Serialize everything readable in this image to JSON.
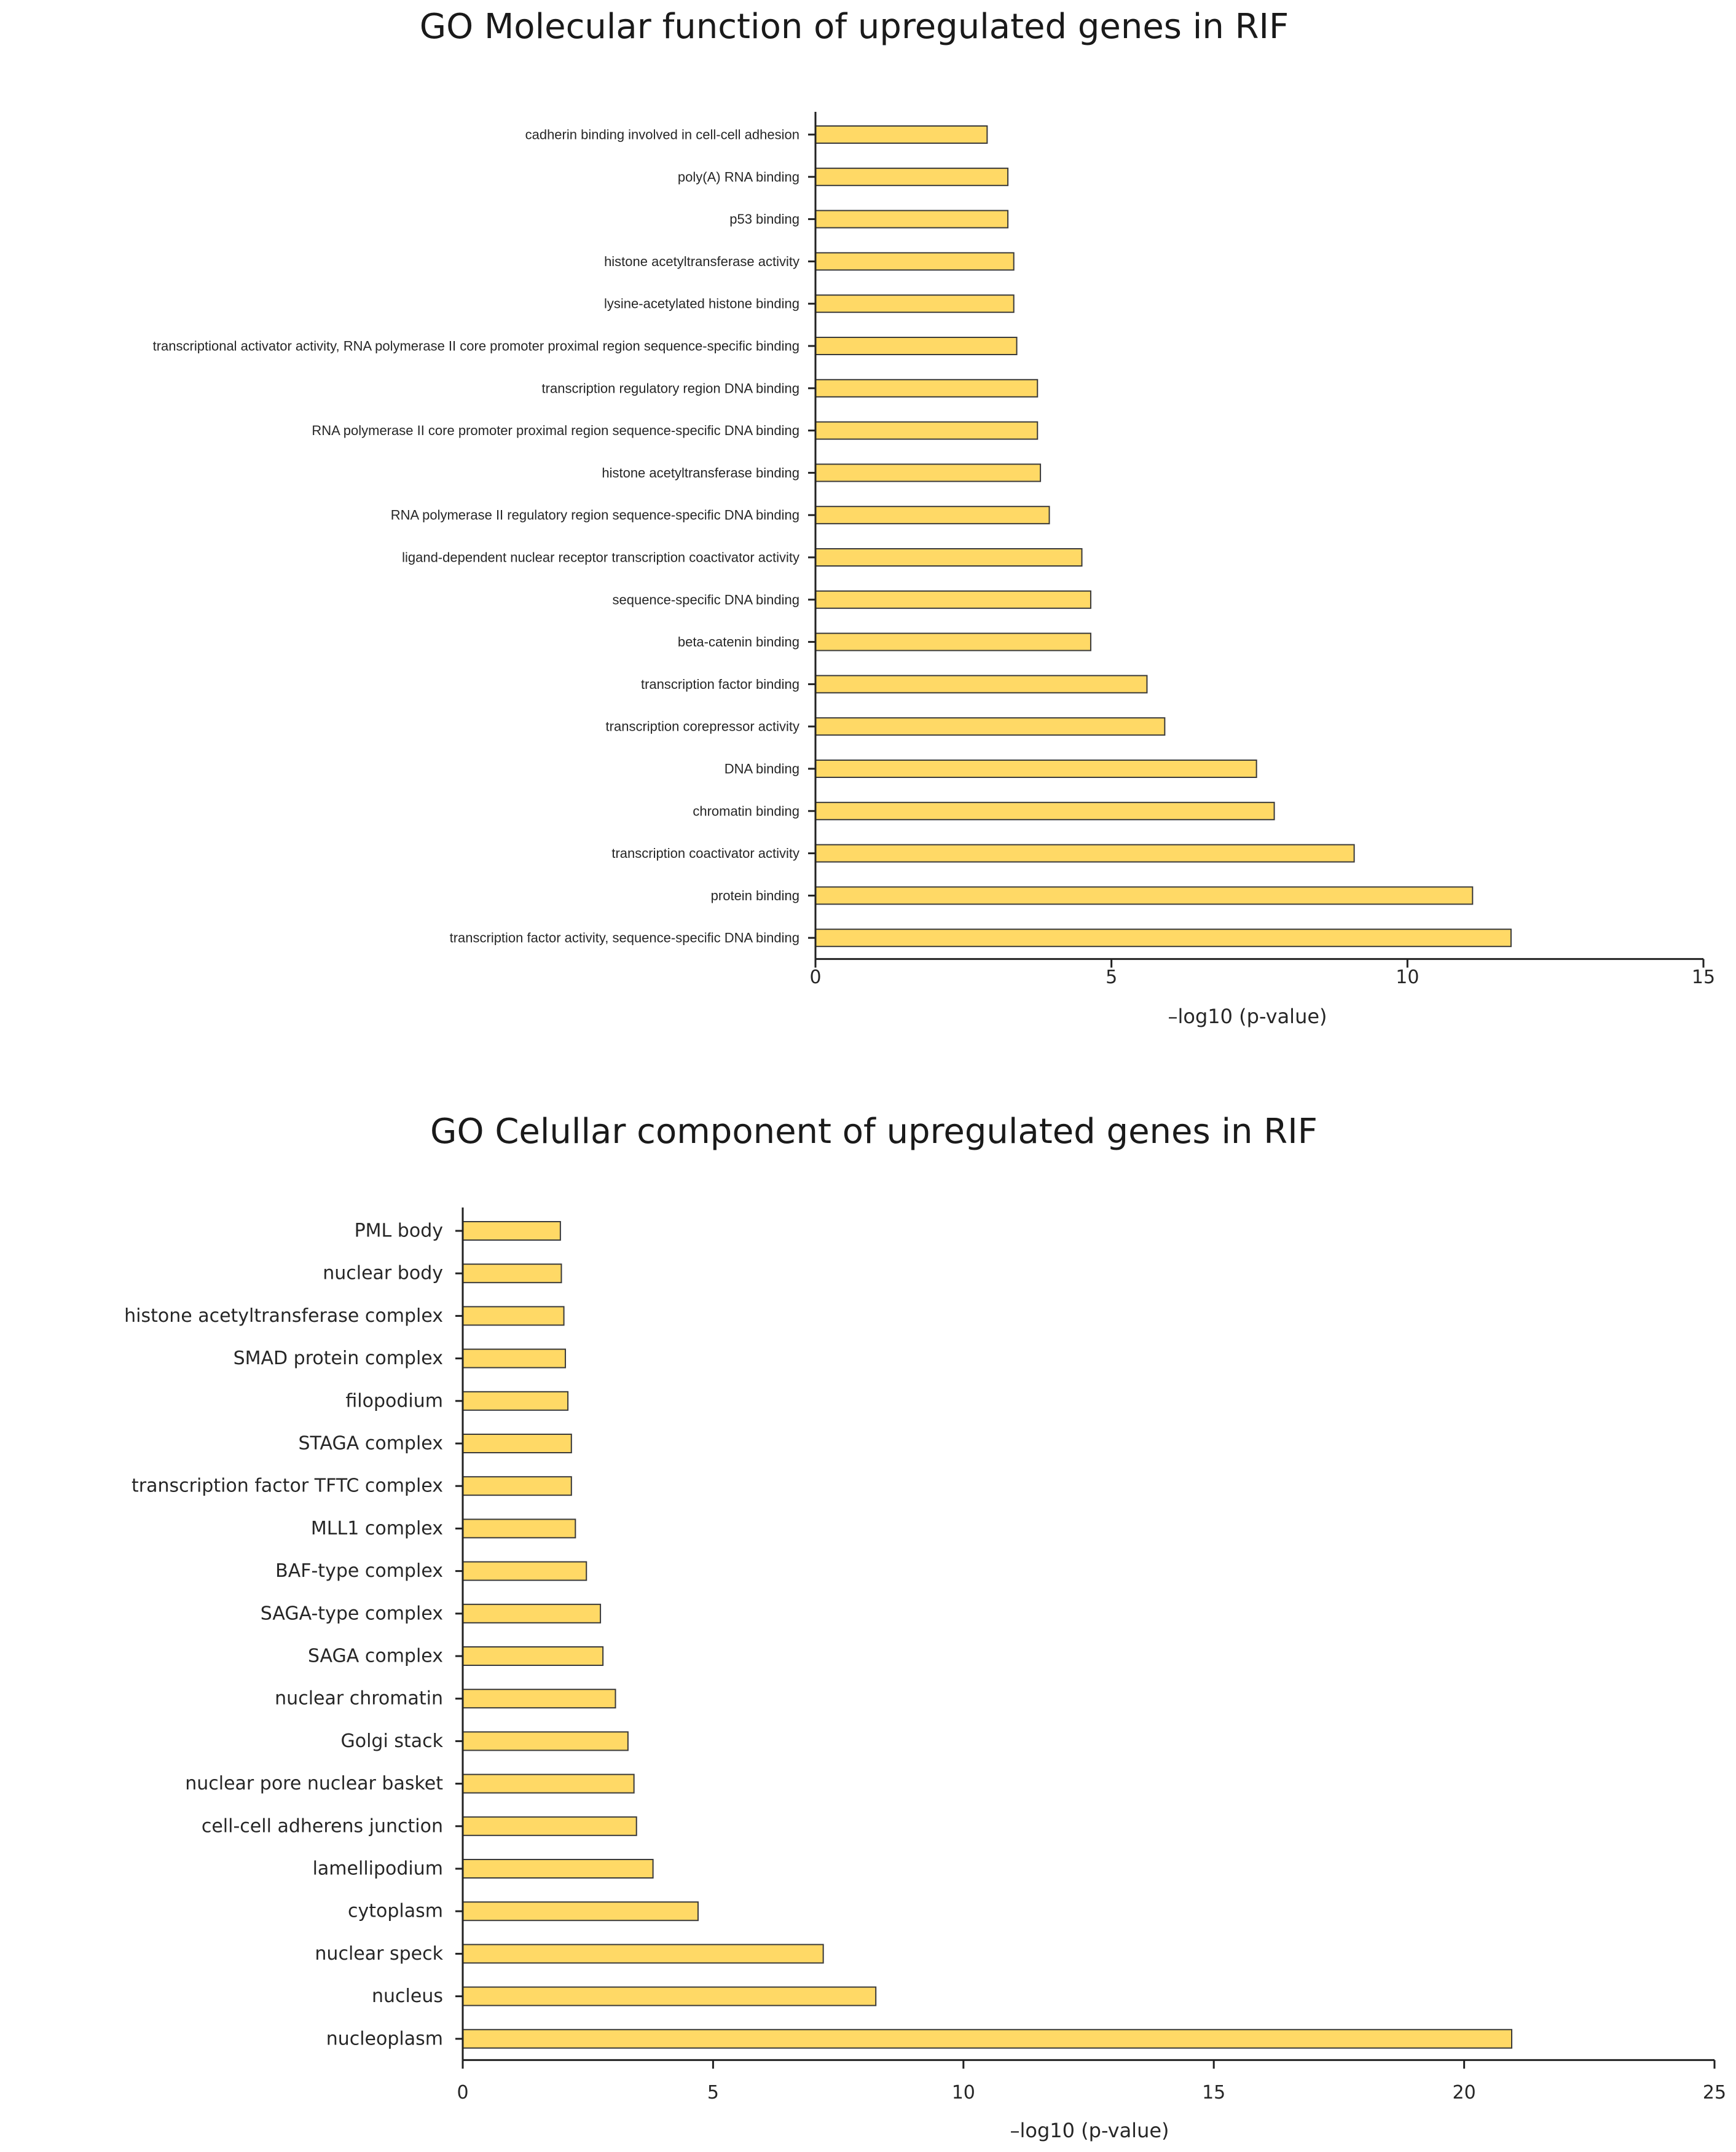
{
  "chart_data": [
    {
      "type": "bar",
      "orientation": "horizontal",
      "title": "GO Molecular function of upregulated genes in RIF",
      "xlabel": "–log10 (p-value)",
      "ylabel": "",
      "xlim": [
        0,
        15
      ],
      "xticks": [
        0,
        5,
        10,
        15
      ],
      "bar_color": "#FFD966",
      "categories": [
        "cadherin binding involved in cell-cell adhesion",
        "poly(A) RNA binding",
        "p53 binding",
        "histone acetyltransferase activity",
        "lysine-acetylated histone binding",
        "transcriptional activator activity, RNA polymerase II core promoter proximal region sequence-specific binding",
        "transcription regulatory region DNA binding",
        "RNA polymerase II core promoter proximal region sequence-specific DNA binding",
        "histone acetyltransferase binding",
        "RNA polymerase II regulatory region sequence-specific DNA binding",
        "ligand-dependent nuclear receptor transcription coactivator activity",
        "sequence-specific DNA binding",
        "beta-catenin binding",
        "transcription factor binding",
        "transcription corepressor activity",
        "DNA binding",
        "chromatin binding",
        "transcription coactivator activity",
        "protein binding",
        "transcription factor activity, sequence-specific DNA binding"
      ],
      "values": [
        2.9,
        3.25,
        3.25,
        3.35,
        3.35,
        3.4,
        3.75,
        3.75,
        3.8,
        3.95,
        4.5,
        4.65,
        4.65,
        5.6,
        5.9,
        7.45,
        7.75,
        9.1,
        11.1,
        11.75
      ]
    },
    {
      "type": "bar",
      "orientation": "horizontal",
      "title": "GO Celullar component of upregulated genes in RIF",
      "xlabel": "–log10 (p-value)",
      "ylabel": "",
      "xlim": [
        0,
        25
      ],
      "xticks": [
        0,
        5,
        10,
        15,
        20,
        25
      ],
      "bar_color": "#FFD966",
      "categories": [
        "PML body",
        "nuclear body",
        "histone acetyltransferase complex",
        "SMAD protein complex",
        "filopodium",
        "STAGA complex",
        "transcription factor TFTC complex",
        "MLL1 complex",
        "BAF-type complex",
        "SAGA-type complex",
        "SAGA complex",
        "nuclear chromatin",
        "Golgi stack",
        "nuclear pore nuclear basket",
        "cell-cell adherens junction",
        "lamellipodium",
        "cytoplasm",
        "nuclear speck",
        "nucleus",
        "nucleoplasm"
      ],
      "values": [
        1.95,
        1.97,
        2.02,
        2.05,
        2.1,
        2.17,
        2.17,
        2.25,
        2.47,
        2.75,
        2.8,
        3.05,
        3.3,
        3.42,
        3.47,
        3.8,
        4.7,
        7.2,
        8.25,
        20.95
      ]
    }
  ]
}
